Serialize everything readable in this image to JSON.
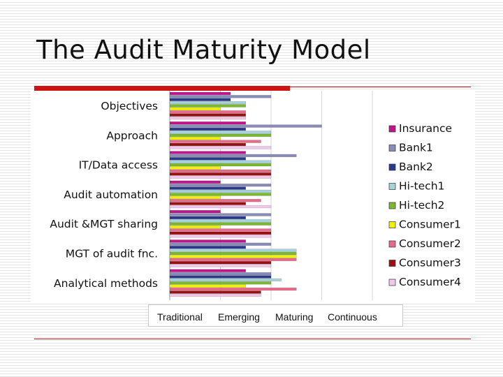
{
  "slide": {
    "title": "The Audit Maturity Model",
    "accent_color": "#cc1414"
  },
  "chart_data": {
    "type": "bar",
    "orientation": "horizontal",
    "categories": [
      "Objectives",
      "Approach",
      "IT/Data access",
      "Audit automation",
      "Audit &MGT sharing",
      "MGT of audit fnc.",
      "Analytical methods"
    ],
    "x_tick_labels": [
      "Traditional",
      "Emerging",
      "Maturing",
      "Continuous"
    ],
    "xlim": [
      0,
      4
    ],
    "grid": true,
    "legend_position": "right",
    "series": [
      {
        "name": "Insurance",
        "color": "#c0158c",
        "values": [
          1.2,
          1.5,
          1.5,
          1.0,
          1.0,
          1.5,
          1.5
        ]
      },
      {
        "name": "Bank1",
        "color": "#8a8cb8",
        "values": [
          2.0,
          3.0,
          2.5,
          2.0,
          2.0,
          2.0,
          2.0
        ]
      },
      {
        "name": "Bank2",
        "color": "#2a3a8a",
        "values": [
          1.2,
          1.5,
          1.5,
          1.5,
          1.5,
          1.5,
          2.0
        ]
      },
      {
        "name": "Hi-tech1",
        "color": "#a6d2dc",
        "values": [
          1.5,
          2.0,
          2.0,
          2.0,
          2.0,
          2.5,
          2.2
        ]
      },
      {
        "name": "Hi-tech2",
        "color": "#7ab82e",
        "values": [
          1.5,
          2.0,
          2.0,
          2.0,
          2.0,
          2.5,
          2.0
        ]
      },
      {
        "name": "Consumer1",
        "color": "#f2f200",
        "values": [
          1.0,
          1.0,
          1.0,
          1.0,
          1.0,
          2.5,
          1.5
        ]
      },
      {
        "name": "Consumer2",
        "color": "#e86a8a",
        "values": [
          1.5,
          1.8,
          2.0,
          1.8,
          2.0,
          2.5,
          2.5
        ]
      },
      {
        "name": "Consumer3",
        "color": "#9a1010",
        "values": [
          1.5,
          1.5,
          2.0,
          1.5,
          2.0,
          2.0,
          1.8
        ]
      },
      {
        "name": "Consumer4",
        "color": "#f0c8ec",
        "values": [
          1.5,
          2.0,
          2.0,
          2.0,
          2.0,
          2.0,
          1.8
        ]
      }
    ]
  }
}
